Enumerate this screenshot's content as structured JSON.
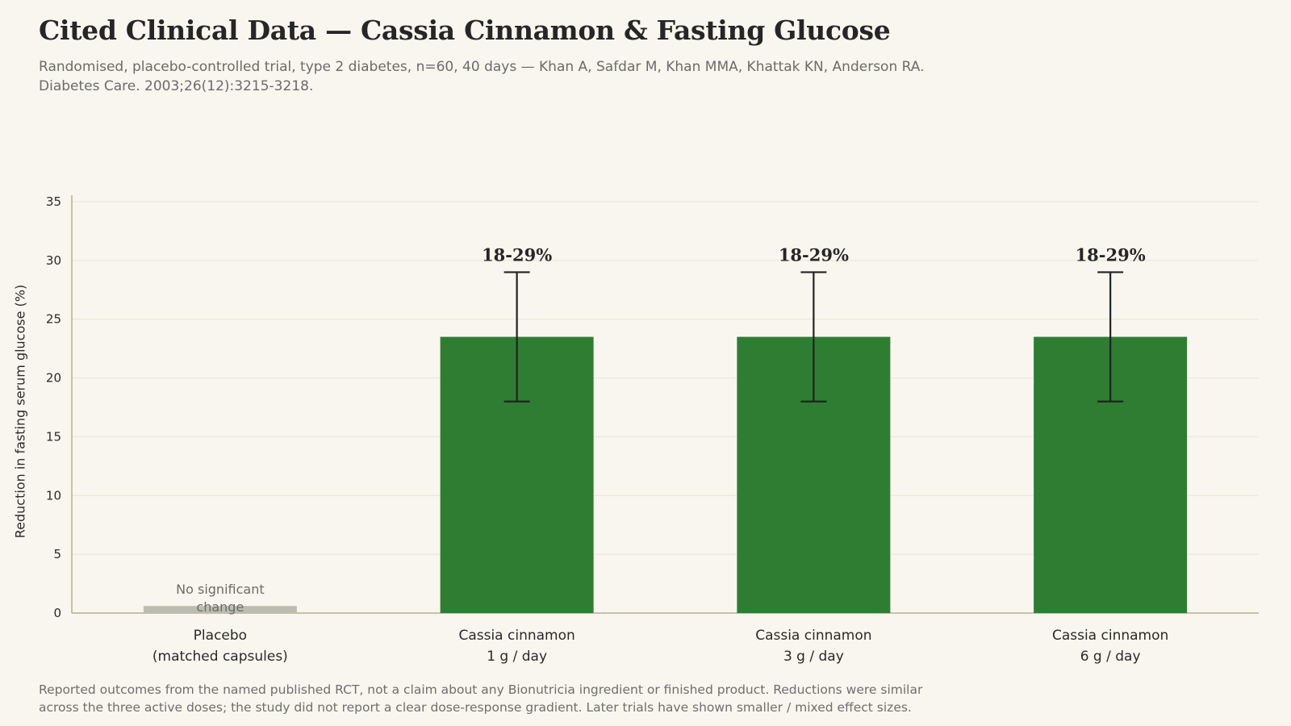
{
  "header": {
    "title": "Cited Clinical Data — Cassia Cinnamon & Fasting Glucose",
    "subtitle_lines": [
      "Randomised, placebo-controlled trial, type 2 diabetes, n=60, 40 days — Khan A, Safdar M, Khan MMA, Khattak KN, Anderson RA.",
      "Diabetes Care. 2003;26(12):3215-3218."
    ]
  },
  "footer": {
    "lines": [
      "Reported outcomes from the named published RCT, not a claim about any Bionutricia ingredient or finished product. Reductions were similar",
      "across the three active doses; the study did not report a clear dose-response gradient. Later trials have shown smaller / mixed effect sizes."
    ]
  },
  "colors": {
    "active_bar": "#2f7d32",
    "placebo_bar": "#bdbcb1",
    "error_bar": "#222222",
    "grid": "#e8e4d8",
    "axis": "#b8ad94"
  },
  "chart_data": {
    "type": "bar",
    "ylabel": "Reduction in fasting serum glucose (%)",
    "ylim": [
      0,
      35
    ],
    "yticks": [
      0,
      5,
      10,
      15,
      20,
      25,
      30,
      35
    ],
    "grid": true,
    "categories": [
      [
        "Placebo",
        "(matched capsules)"
      ],
      [
        "Cassia cinnamon",
        "1 g / day"
      ],
      [
        "Cassia cinnamon",
        "3 g / day"
      ],
      [
        "Cassia cinnamon",
        "6 g / day"
      ]
    ],
    "values": [
      0.6,
      23.5,
      23.5,
      23.5
    ],
    "error_low": [
      null,
      18,
      18,
      18
    ],
    "error_high": [
      null,
      29,
      29,
      29
    ],
    "value_labels": [
      "",
      "18-29%",
      "18-29%",
      "18-29%"
    ],
    "annotations": [
      {
        "category_index": 0,
        "lines": [
          "No significant",
          "change"
        ]
      }
    ]
  }
}
